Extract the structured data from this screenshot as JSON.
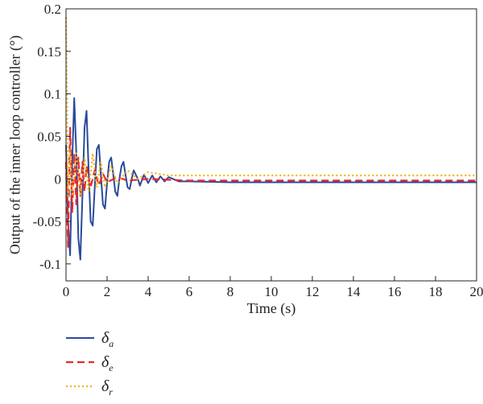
{
  "chart_data": {
    "type": "line",
    "title": "",
    "xlabel": "Time (s)",
    "ylabel": "Output of the inner loop controller (°)",
    "xlim": [
      0,
      20
    ],
    "ylim": [
      -0.12,
      0.2
    ],
    "x_ticks": [
      0,
      2,
      4,
      6,
      8,
      10,
      12,
      14,
      16,
      18,
      20
    ],
    "y_ticks": [
      -0.1,
      -0.05,
      0,
      0.05,
      0.1,
      0.15,
      0.2
    ],
    "x_tick_labels": [
      "0",
      "2",
      "4",
      "6",
      "8",
      "10",
      "12",
      "14",
      "16",
      "18",
      "20"
    ],
    "y_tick_labels": [
      "-0.1",
      "-0.05",
      "0",
      "0.05",
      "0.1",
      "0.15",
      "0.2"
    ],
    "grid": false,
    "legend_position": "bottom-left, below plot",
    "series": [
      {
        "name": "δa",
        "symbol": "δ",
        "subscript": "a",
        "color": "#2a4a9a",
        "style": "solid",
        "points": [
          [
            0,
            0.04
          ],
          [
            0.1,
            -0.05
          ],
          [
            0.2,
            -0.09
          ],
          [
            0.3,
            0.02
          ],
          [
            0.4,
            0.095
          ],
          [
            0.5,
            0.03
          ],
          [
            0.6,
            -0.07
          ],
          [
            0.7,
            -0.095
          ],
          [
            0.8,
            -0.02
          ],
          [
            0.9,
            0.06
          ],
          [
            1.0,
            0.08
          ],
          [
            1.1,
            0.01
          ],
          [
            1.2,
            -0.05
          ],
          [
            1.3,
            -0.055
          ],
          [
            1.4,
            -0.01
          ],
          [
            1.5,
            0.035
          ],
          [
            1.6,
            0.04
          ],
          [
            1.7,
            0.005
          ],
          [
            1.8,
            -0.03
          ],
          [
            1.9,
            -0.035
          ],
          [
            2.0,
            -0.005
          ],
          [
            2.1,
            0.02
          ],
          [
            2.2,
            0.025
          ],
          [
            2.3,
            0.005
          ],
          [
            2.4,
            -0.015
          ],
          [
            2.5,
            -0.02
          ],
          [
            2.6,
            0.0
          ],
          [
            2.7,
            0.015
          ],
          [
            2.8,
            0.02
          ],
          [
            2.9,
            0.005
          ],
          [
            3.0,
            -0.01
          ],
          [
            3.1,
            -0.012
          ],
          [
            3.2,
            0.0
          ],
          [
            3.3,
            0.01
          ],
          [
            3.5,
            0.0
          ],
          [
            3.6,
            -0.008
          ],
          [
            3.8,
            0.005
          ],
          [
            4.0,
            -0.005
          ],
          [
            4.2,
            0.004
          ],
          [
            4.4,
            -0.004
          ],
          [
            4.6,
            0.003
          ],
          [
            4.8,
            -0.003
          ],
          [
            5.0,
            0.002
          ],
          [
            5.5,
            -0.003
          ],
          [
            6.0,
            -0.003
          ],
          [
            8.0,
            -0.004
          ],
          [
            10.0,
            -0.004
          ],
          [
            12.0,
            -0.004
          ],
          [
            14.0,
            -0.004
          ],
          [
            16.0,
            -0.004
          ],
          [
            18.0,
            -0.004
          ],
          [
            20.0,
            -0.004
          ]
        ]
      },
      {
        "name": "δe",
        "symbol": "δ",
        "subscript": "e",
        "color": "#e8282a",
        "style": "dashed",
        "points": [
          [
            0,
            0.02
          ],
          [
            0.1,
            -0.08
          ],
          [
            0.2,
            0.06
          ],
          [
            0.3,
            -0.04
          ],
          [
            0.4,
            0.03
          ],
          [
            0.5,
            -0.03
          ],
          [
            0.6,
            0.025
          ],
          [
            0.7,
            -0.02
          ],
          [
            0.8,
            0.02
          ],
          [
            0.9,
            -0.015
          ],
          [
            1.0,
            0.015
          ],
          [
            1.2,
            -0.01
          ],
          [
            1.4,
            0.01
          ],
          [
            1.6,
            -0.008
          ],
          [
            1.8,
            0.006
          ],
          [
            2.0,
            -0.004
          ],
          [
            2.5,
            0.002
          ],
          [
            3.0,
            -0.002
          ],
          [
            4.0,
            0.0
          ],
          [
            6.0,
            -0.002
          ],
          [
            10.0,
            -0.002
          ],
          [
            20.0,
            -0.002
          ]
        ]
      },
      {
        "name": "δr",
        "symbol": "δ",
        "subscript": "r",
        "color": "#f2b21a",
        "style": "dotted",
        "points": [
          [
            0,
            0.19
          ],
          [
            0.05,
            0.1
          ],
          [
            0.1,
            -0.02
          ],
          [
            0.2,
            0.035
          ],
          [
            0.3,
            -0.02
          ],
          [
            0.5,
            0.03
          ],
          [
            0.7,
            -0.02
          ],
          [
            0.9,
            0.025
          ],
          [
            1.1,
            -0.015
          ],
          [
            1.3,
            0.03
          ],
          [
            1.5,
            -0.01
          ],
          [
            1.7,
            0.02
          ],
          [
            1.9,
            -0.01
          ],
          [
            2.2,
            0.015
          ],
          [
            2.5,
            -0.005
          ],
          [
            3.0,
            0.01
          ],
          [
            3.5,
            0.0
          ],
          [
            4.0,
            0.008
          ],
          [
            5.0,
            0.004
          ],
          [
            6.0,
            0.004
          ],
          [
            8.0,
            0.004
          ],
          [
            10.0,
            0.004
          ],
          [
            12.0,
            0.004
          ],
          [
            14.0,
            0.004
          ],
          [
            16.0,
            0.004
          ],
          [
            18.0,
            0.004
          ],
          [
            20.0,
            0.004
          ]
        ]
      }
    ]
  }
}
